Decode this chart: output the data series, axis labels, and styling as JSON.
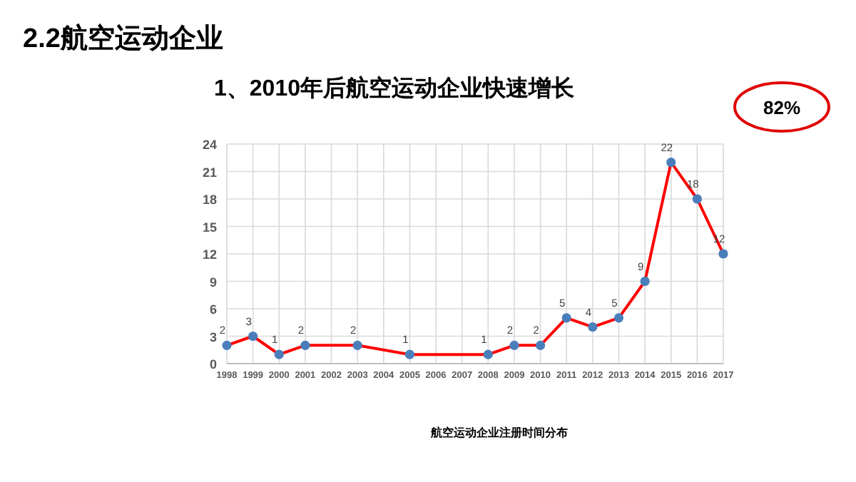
{
  "chart_data": {
    "type": "line",
    "title": "2.2航空运动企业",
    "subtitle": "1、2010年后航空运动企业快速增长",
    "categories": [
      "1998",
      "1999",
      "2000",
      "2001",
      "2002",
      "2003",
      "2004",
      "2005",
      "2006",
      "2007",
      "2008",
      "2009",
      "2010",
      "2011",
      "2012",
      "2013",
      "2014",
      "2015",
      "2016",
      "2017"
    ],
    "series": [
      {
        "color": "#ff0000",
        "colors": [
          "#4a7ebb",
          "#4a7ebb",
          "#4a7ebb",
          "#4a7ebb",
          null,
          "#4a7ebb",
          null,
          "#4a7ebb",
          null,
          null,
          "#4a7ebb",
          "#4a7ebb",
          "#4a7ebb",
          "#4a7ebb",
          "#4a7ebb",
          "#4a7ebb",
          "#4a7ebb",
          "#4a7ebb",
          "#4a7ebb",
          "#4a7ebb"
        ],
        "values": [
          2,
          3,
          1,
          2,
          null,
          2,
          null,
          1,
          null,
          null,
          1,
          2,
          2,
          5,
          4,
          5,
          9,
          22,
          18,
          12
        ]
      }
    ],
    "ylim": [
      0,
      24
    ],
    "yticks": [
      0,
      3,
      6,
      9,
      12,
      15,
      18,
      21,
      24
    ],
    "grid": true,
    "marker": "circle",
    "line_style": "solid",
    "data_labels": true,
    "annotations": [
      "82%",
      "航空运动企业注册时间分布"
    ]
  }
}
